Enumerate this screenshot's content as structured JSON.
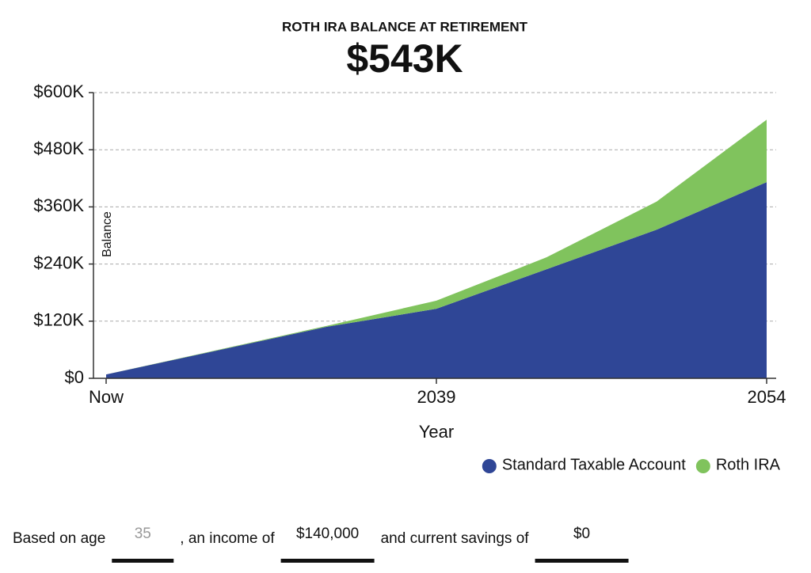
{
  "chart_data": {
    "type": "stacked-area",
    "title": "ROTH IRA BALANCE AT RETIREMENT",
    "subtitle": "$543K",
    "x_label": "Year",
    "y_label": "Balance",
    "categories": [
      "Now",
      null,
      null,
      "2039",
      null,
      null,
      "2054"
    ],
    "series": [
      {
        "name": "Standard Taxable Account",
        "color": "#2f4696",
        "values": [
          8000,
          58000,
          108000,
          146000,
          229000,
          312000,
          412000
        ]
      },
      {
        "name": "Roth IRA",
        "color": "#80c35d",
        "values": [
          0,
          1000,
          2000,
          17000,
          25000,
          59000,
          131000
        ]
      }
    ],
    "ylim": [
      0,
      600000
    ],
    "yticks": [
      {
        "value": 0,
        "label": "$0"
      },
      {
        "value": 120000,
        "label": "$120K"
      },
      {
        "value": 240000,
        "label": "$240K"
      },
      {
        "value": 360000,
        "label": "$360K"
      },
      {
        "value": 480000,
        "label": "$480K"
      },
      {
        "value": 600000,
        "label": "$600K"
      }
    ],
    "grid": true
  },
  "form": {
    "parts": [
      {
        "text": "Based on age",
        "input": "35",
        "placeholder": true
      },
      {
        "text": ", an income of",
        "input": "$140,000",
        "placeholder": false
      },
      {
        "text": "and current savings of",
        "input": "$0",
        "placeholder": false
      }
    ]
  }
}
